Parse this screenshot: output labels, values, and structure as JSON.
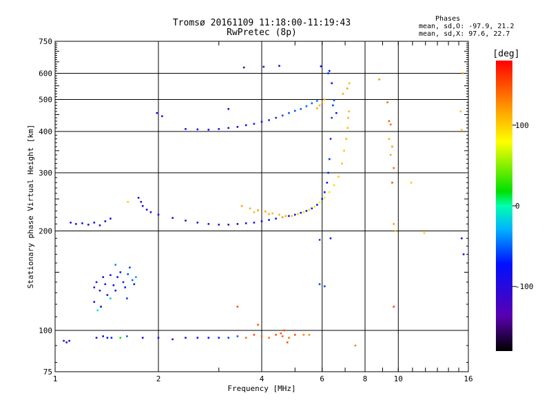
{
  "chart_data": {
    "type": "scatter",
    "title": "Tromsø 20161109 11:18:00-11:19:43",
    "subtitle": "RwPretec (8p)",
    "xlabel": "Frequency [MHz]",
    "ylabel": "Stationary phase Virtual Height [km]",
    "xscale": "log",
    "yscale": "log",
    "xlim": [
      1,
      16
    ],
    "ylim": [
      75,
      750
    ],
    "x_ticks": [
      1,
      2,
      4,
      6,
      8,
      10,
      16
    ],
    "y_ticks": [
      75,
      100,
      200,
      300,
      400,
      500,
      600,
      750
    ],
    "grid": true,
    "legend": {
      "title": "Phases",
      "line1": "mean, sd,O: -97.9, 21.2",
      "line2": "mean, sd,X:  97.6, 22.7"
    },
    "colorbar": {
      "label": "[deg]",
      "range": [
        -180,
        180
      ],
      "ticks": [
        100,
        0,
        -100
      ],
      "tick_labels": [
        "100",
        "0",
        "-100"
      ]
    },
    "series": [
      {
        "points": [
          [
            1.11,
            212,
            -90
          ],
          [
            1.15,
            210,
            -92
          ],
          [
            1.2,
            211,
            -85
          ],
          [
            1.25,
            209,
            -90
          ],
          [
            1.3,
            212,
            -85
          ],
          [
            1.35,
            208,
            -88
          ],
          [
            1.4,
            214,
            -80
          ],
          [
            1.45,
            218,
            -85
          ],
          [
            1.75,
            252,
            -95
          ],
          [
            1.78,
            245,
            -95
          ],
          [
            1.8,
            238,
            -93
          ],
          [
            1.85,
            232,
            -95
          ],
          [
            1.9,
            228,
            -93
          ],
          [
            2.0,
            224,
            -90
          ],
          [
            2.2,
            219,
            -95
          ],
          [
            2.4,
            215,
            -90
          ],
          [
            2.6,
            212,
            -92
          ],
          [
            2.8,
            210,
            -90
          ],
          [
            3.0,
            209,
            -93
          ],
          [
            3.2,
            209,
            -90
          ],
          [
            3.4,
            210,
            -95
          ],
          [
            3.6,
            211,
            -88
          ],
          [
            3.8,
            212,
            -90
          ],
          [
            4.0,
            214,
            -85
          ],
          [
            4.2,
            216,
            -88
          ],
          [
            4.4,
            218,
            -88
          ],
          [
            4.6,
            220,
            -85
          ],
          [
            4.8,
            222,
            -85
          ],
          [
            5.0,
            224,
            -80
          ],
          [
            5.2,
            227,
            -80
          ],
          [
            5.4,
            230,
            -78
          ],
          [
            5.6,
            234,
            -75
          ],
          [
            5.8,
            240,
            -72
          ],
          [
            6.0,
            250,
            -70
          ],
          [
            6.1,
            262,
            -70
          ],
          [
            6.2,
            280,
            -70
          ],
          [
            6.25,
            300,
            -68
          ],
          [
            6.3,
            330,
            -65
          ],
          [
            6.35,
            380,
            -65
          ],
          [
            6.4,
            440,
            -60
          ],
          [
            6.45,
            480,
            -60
          ],
          [
            6.5,
            497,
            -55
          ],
          [
            2.4,
            407,
            -85
          ],
          [
            2.6,
            406,
            -88
          ],
          [
            2.8,
            405,
            -90
          ],
          [
            3.0,
            407,
            -85
          ],
          [
            3.2,
            410,
            -88
          ],
          [
            3.4,
            413,
            -80
          ],
          [
            3.6,
            418,
            -75
          ],
          [
            3.8,
            422,
            -70
          ],
          [
            4.0,
            428,
            -70
          ],
          [
            4.2,
            433,
            -65
          ],
          [
            4.4,
            440,
            -65
          ],
          [
            4.6,
            447,
            -60
          ],
          [
            4.8,
            455,
            -55
          ],
          [
            5.0,
            462,
            -55
          ],
          [
            5.2,
            468,
            -50
          ],
          [
            5.4,
            477,
            -50
          ],
          [
            5.6,
            487,
            -50
          ],
          [
            5.8,
            495,
            -45
          ],
          [
            2.05,
            445,
            -90
          ],
          [
            1.98,
            455,
            -85
          ],
          [
            3.2,
            468,
            -90
          ],
          [
            3.55,
            625,
            -110
          ],
          [
            4.05,
            628,
            -120
          ],
          [
            4.5,
            632,
            -75
          ],
          [
            5.95,
            630,
            -75
          ],
          [
            6.3,
            610,
            -80
          ],
          [
            1.3,
            135,
            -95
          ],
          [
            1.32,
            140,
            -92
          ],
          [
            1.35,
            132,
            -105
          ],
          [
            1.38,
            145,
            -95
          ],
          [
            1.4,
            138,
            -95
          ],
          [
            1.42,
            128,
            -100
          ],
          [
            1.45,
            147,
            -90
          ],
          [
            1.48,
            137,
            -90
          ],
          [
            1.5,
            132,
            -80
          ],
          [
            1.52,
            145,
            -75
          ],
          [
            1.55,
            150,
            -70
          ],
          [
            1.58,
            140,
            -65
          ],
          [
            1.6,
            135,
            -70
          ],
          [
            1.63,
            148,
            -55
          ],
          [
            1.65,
            155,
            -60
          ],
          [
            1.68,
            142,
            -50
          ],
          [
            1.7,
            138,
            -70
          ],
          [
            1.72,
            145,
            -35
          ],
          [
            1.3,
            122,
            -80
          ],
          [
            1.36,
            118,
            -75
          ],
          [
            1.45,
            125,
            -20
          ],
          [
            1.5,
            158,
            -40
          ],
          [
            1.62,
            125,
            -60
          ],
          [
            1.33,
            115,
            -10
          ],
          [
            1.06,
            93,
            -105
          ],
          [
            1.08,
            92,
            -105
          ],
          [
            1.1,
            93,
            -100
          ],
          [
            1.32,
            95,
            -100
          ],
          [
            1.38,
            96,
            -95
          ],
          [
            1.42,
            95,
            -90
          ],
          [
            1.46,
            95,
            -70
          ],
          [
            1.55,
            95,
            20
          ],
          [
            1.62,
            96,
            -50
          ],
          [
            1.8,
            95,
            -80
          ],
          [
            2.0,
            95,
            -90
          ],
          [
            2.2,
            94,
            -90
          ],
          [
            2.4,
            95,
            -85
          ],
          [
            2.6,
            95,
            -80
          ],
          [
            2.8,
            95,
            -75
          ],
          [
            3.0,
            95,
            -70
          ],
          [
            3.2,
            95,
            -60
          ],
          [
            3.4,
            96,
            -50
          ],
          [
            5.9,
            188,
            -60
          ],
          [
            6.35,
            190,
            -70
          ],
          [
            5.9,
            138,
            -60
          ],
          [
            6.1,
            136,
            -60
          ],
          [
            15.3,
            190,
            -85
          ],
          [
            15.5,
            170,
            -80
          ],
          [
            6.4,
            560,
            -80
          ],
          [
            6.6,
            455,
            -85
          ],
          [
            6.25,
            600,
            -65
          ]
        ]
      },
      {
        "points": [
          [
            3.5,
            238,
            120
          ],
          [
            3.7,
            234,
            115
          ],
          [
            3.9,
            231,
            120
          ],
          [
            4.1,
            229,
            115
          ],
          [
            4.3,
            226,
            110
          ],
          [
            4.5,
            224,
            115
          ],
          [
            4.7,
            222,
            110
          ],
          [
            4.9,
            222,
            105
          ],
          [
            5.1,
            225,
            100
          ],
          [
            5.3,
            228,
            95
          ],
          [
            5.5,
            232,
            95
          ],
          [
            5.7,
            237,
            90
          ],
          [
            5.9,
            244,
            85
          ],
          [
            6.1,
            252,
            85
          ],
          [
            6.3,
            262,
            90
          ],
          [
            6.5,
            275,
            95
          ],
          [
            6.7,
            292,
            100
          ],
          [
            6.85,
            320,
            105
          ],
          [
            6.95,
            350,
            105
          ],
          [
            7.05,
            380,
            110
          ],
          [
            7.12,
            410,
            110
          ],
          [
            7.15,
            440,
            115
          ],
          [
            7.18,
            460,
            110
          ],
          [
            3.8,
            228,
            110
          ],
          [
            4.2,
            225,
            115
          ],
          [
            4.6,
            220,
            110
          ],
          [
            5.8,
            470,
            115
          ],
          [
            5.9,
            480,
            110
          ],
          [
            6.0,
            490,
            120
          ],
          [
            6.1,
            500,
            110
          ],
          [
            6.9,
            520,
            115
          ],
          [
            7.1,
            540,
            120
          ],
          [
            7.2,
            560,
            110
          ],
          [
            8.8,
            575,
            125
          ],
          [
            9.3,
            490,
            140
          ],
          [
            9.4,
            430,
            150
          ],
          [
            9.5,
            420,
            140
          ],
          [
            9.4,
            380,
            110
          ],
          [
            9.6,
            360,
            120
          ],
          [
            9.5,
            340,
            115
          ],
          [
            9.7,
            310,
            140
          ],
          [
            9.6,
            280,
            150
          ],
          [
            9.7,
            210,
            120
          ],
          [
            9.8,
            200,
            110
          ],
          [
            9.7,
            118,
            155
          ],
          [
            10.9,
            280,
            100
          ],
          [
            11.9,
            197,
            100
          ],
          [
            15.2,
            460,
            105
          ],
          [
            15.3,
            405,
            100
          ],
          [
            15.4,
            600,
            120
          ],
          [
            3.6,
            95,
            140
          ],
          [
            3.8,
            97,
            150
          ],
          [
            4.0,
            96,
            145
          ],
          [
            4.2,
            95,
            140
          ],
          [
            4.4,
            97,
            150
          ],
          [
            4.6,
            96,
            145
          ],
          [
            4.8,
            95,
            140
          ],
          [
            5.0,
            97,
            150
          ],
          [
            5.3,
            97,
            130
          ],
          [
            5.5,
            97,
            125
          ],
          [
            3.4,
            118,
            150
          ],
          [
            3.9,
            104,
            150
          ],
          [
            7.5,
            90,
            130
          ],
          [
            4.75,
            92,
            150
          ],
          [
            4.65,
            100,
            155
          ],
          [
            4.55,
            98,
            150
          ],
          [
            1.63,
            245,
            100
          ]
        ]
      }
    ]
  }
}
